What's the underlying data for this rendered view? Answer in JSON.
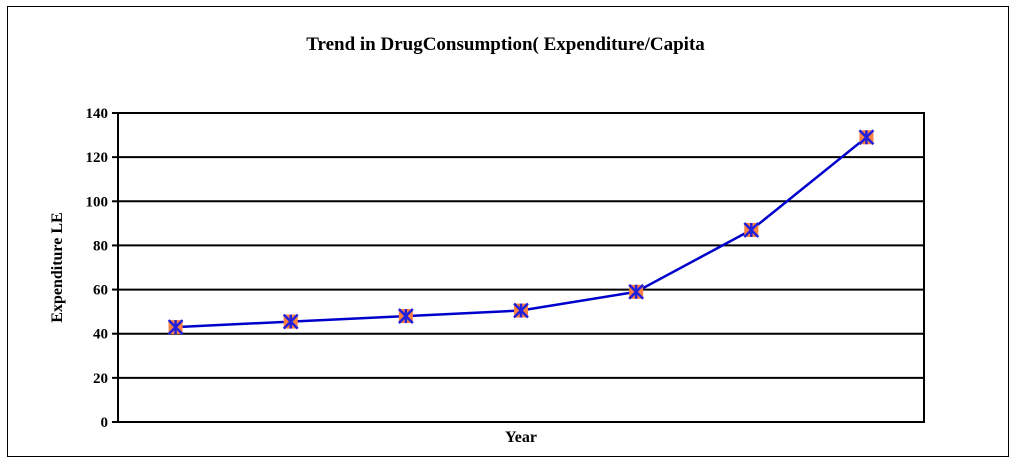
{
  "chart_data": {
    "type": "line",
    "title": "Trend in DrugConsumption( Expenditure/Capita",
    "xlabel": "Year",
    "ylabel": "Expenditure LE",
    "ylim": [
      0,
      140
    ],
    "yticks": [
      0,
      20,
      40,
      60,
      80,
      100,
      120,
      140
    ],
    "grid": true,
    "legend": "none",
    "series": [
      {
        "values": [
          43,
          45.5,
          48,
          50.5,
          59,
          87,
          129
        ]
      }
    ],
    "colors": {
      "line": "#0000cc",
      "marker_fill": "#ff8040",
      "marker_cross": "#2020dd",
      "grid": "#000000"
    }
  }
}
